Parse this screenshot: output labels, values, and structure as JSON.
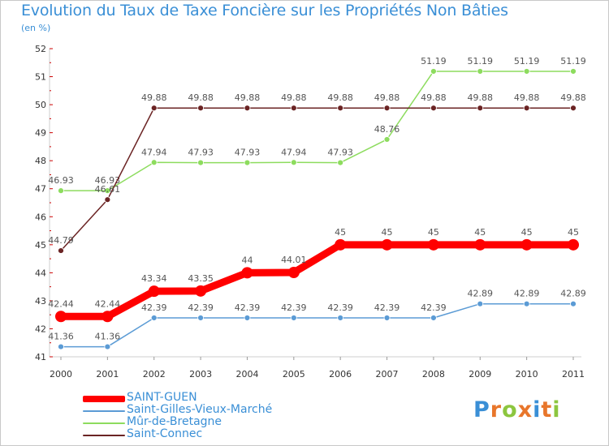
{
  "header": {
    "title": "Evolution du Taux de Taxe Foncière sur les Propriétés Non Bâties",
    "unit": "(en %)"
  },
  "logo": {
    "letters": [
      "P",
      "r",
      "o",
      "x",
      "i",
      "t",
      "i"
    ],
    "colors": [
      "#3a8fd6",
      "#e8762b",
      "#8cc63f",
      "#e8762b",
      "#3a8fd6",
      "#e8762b",
      "#8cc63f"
    ]
  },
  "chart_data": {
    "type": "line",
    "title": "Evolution du Taux de Taxe Foncière sur les Propriétés Non Bâties",
    "ylabel": "(en %)",
    "xlabel": "",
    "x": [
      "2000",
      "2001",
      "2002",
      "2003",
      "2004",
      "2005",
      "2006",
      "2007",
      "2008",
      "2009",
      "2010",
      "2011"
    ],
    "ylim": [
      41,
      52
    ],
    "yticks": [
      "41",
      "42",
      "43",
      "44",
      "45",
      "46",
      "47",
      "48",
      "49",
      "50",
      "51",
      "52"
    ],
    "grid": false,
    "legend_position": "bottom-left",
    "series": [
      {
        "name": "SAINT-GUEN",
        "color": "#ff0000",
        "emphasis": true,
        "values": [
          42.44,
          42.44,
          43.34,
          43.35,
          44,
          44.01,
          45,
          45,
          45,
          45,
          45,
          45
        ],
        "labels": [
          "42.44",
          "42.44",
          "43.34",
          "43.35",
          "44",
          "44.01",
          "45",
          "45",
          "45",
          "45",
          "45",
          "45"
        ]
      },
      {
        "name": "Saint-Gilles-Vieux-Marché",
        "color": "#5b9bd5",
        "emphasis": false,
        "values": [
          41.36,
          41.36,
          42.39,
          42.39,
          42.39,
          42.39,
          42.39,
          42.39,
          42.39,
          42.89,
          42.89,
          42.89
        ],
        "labels": [
          "41.36",
          "41.36",
          "42.39",
          "42.39",
          "42.39",
          "42.39",
          "42.39",
          "42.39",
          "42.39",
          "42.89",
          "42.89",
          "42.89"
        ]
      },
      {
        "name": "Mûr-de-Bretagne",
        "color": "#8ddc5e",
        "emphasis": false,
        "values": [
          46.93,
          46.93,
          47.94,
          47.93,
          47.93,
          47.94,
          47.93,
          48.76,
          51.19,
          51.19,
          51.19,
          51.19
        ],
        "labels": [
          "46.93",
          "46.93",
          "47.94",
          "47.93",
          "47.93",
          "47.94",
          "47.93",
          "48.76",
          "51.19",
          "51.19",
          "51.19",
          "51.19"
        ]
      },
      {
        "name": "Saint-Connec",
        "color": "#6b2424",
        "emphasis": false,
        "values": [
          44.79,
          46.61,
          49.88,
          49.88,
          49.88,
          49.88,
          49.88,
          49.88,
          49.88,
          49.88,
          49.88,
          49.88
        ],
        "labels": [
          "44.79",
          "46.61",
          "49.88",
          "49.88",
          "49.88",
          "49.88",
          "49.88",
          "49.88",
          "49.88",
          "49.88",
          "49.88",
          "49.88"
        ]
      }
    ]
  }
}
